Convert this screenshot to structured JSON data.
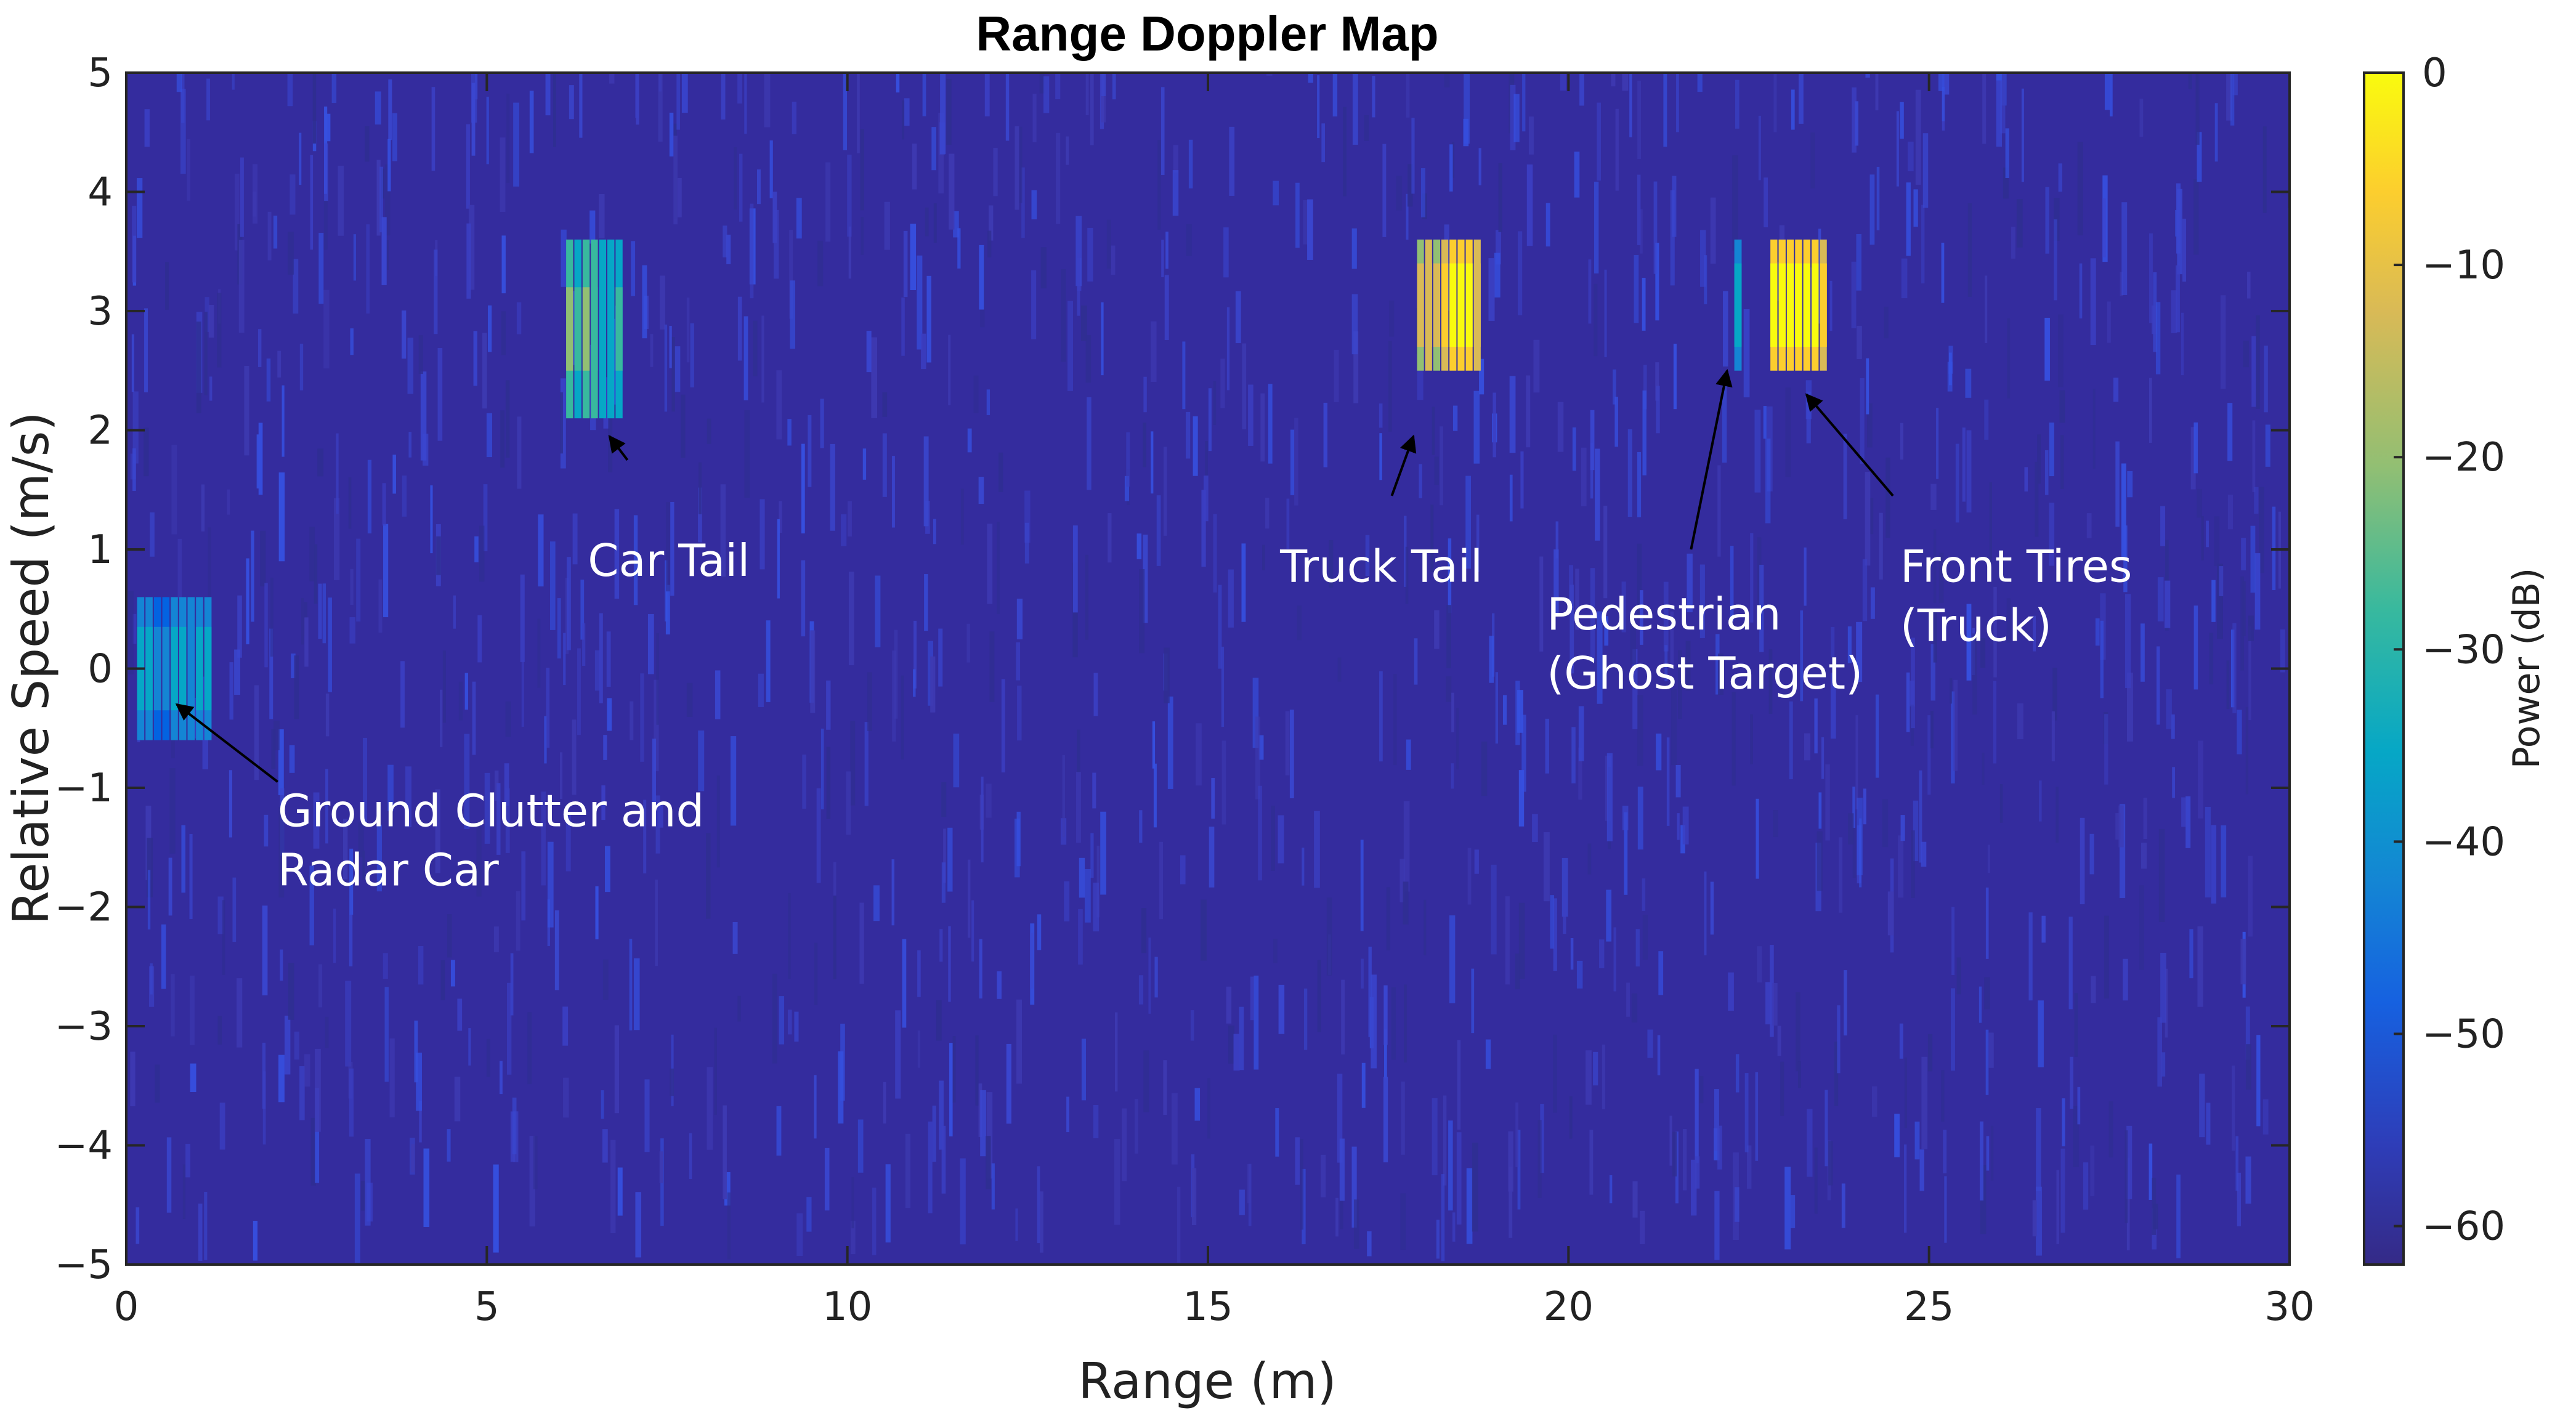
{
  "chart_data": {
    "type": "heatmap",
    "title": "Range Doppler Map",
    "xlabel": "Range (m)",
    "ylabel": "Relative Speed (m/s)",
    "xlim": [
      0,
      30
    ],
    "ylim": [
      -5,
      5
    ],
    "x_ticks": [
      "0",
      "5",
      "10",
      "15",
      "20",
      "25",
      "30"
    ],
    "y_ticks": [
      "5",
      "4",
      "3",
      "2",
      "1",
      "0",
      "−1",
      "−2",
      "−3",
      "−4",
      "−5"
    ],
    "colorbar": {
      "label": "Power (dB)",
      "range": [
        -62,
        0
      ],
      "ticks": [
        "0",
        "−10",
        "−20",
        "−30",
        "−40",
        "−50",
        "−60"
      ],
      "colormap": "parula",
      "colors": [
        "#352A87",
        "#0363E1",
        "#1485D4",
        "#06A7C6",
        "#38B99E",
        "#92BF73",
        "#D9BA56",
        "#FCCE2E",
        "#F9FB0E"
      ]
    },
    "noise_floor_db": -60,
    "targets": [
      {
        "name": "Ground Clutter and Radar Car",
        "range": [
          0.15,
          1.2
        ],
        "speed": [
          -0.6,
          0.6
        ],
        "power_db": -40
      },
      {
        "name": "Car Tail",
        "range": [
          6.1,
          6.9
        ],
        "speed": [
          2.1,
          3.6
        ],
        "power_db": -30
      },
      {
        "name": "Truck Tail",
        "range": [
          17.9,
          18.8
        ],
        "speed": [
          2.5,
          3.6
        ],
        "power_db": -8
      },
      {
        "name": "Pedestrian (Ghost Target)",
        "range": [
          22.3,
          22.4
        ],
        "speed": [
          2.5,
          3.6
        ],
        "power_db": -38
      },
      {
        "name": "Front Tires (Truck)",
        "range": [
          22.8,
          23.6
        ],
        "speed": [
          2.5,
          3.6
        ],
        "power_db": -3
      }
    ],
    "annotations": [
      {
        "lines": [
          "Car Tail"
        ]
      },
      {
        "lines": [
          "Truck Tail"
        ]
      },
      {
        "lines": [
          "Pedestrian",
          "(Ghost Target)"
        ]
      },
      {
        "lines": [
          "Front Tires",
          "(Truck)"
        ]
      },
      {
        "lines": [
          "Ground Clutter and",
          "Radar Car"
        ]
      }
    ]
  }
}
